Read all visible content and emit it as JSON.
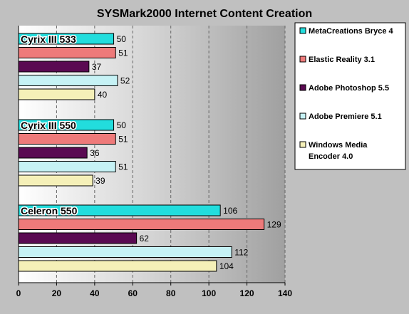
{
  "chart_data": {
    "type": "bar",
    "orientation": "horizontal",
    "title": "SYSMark2000 Internet Content Creation",
    "xlabel": "",
    "ylabel": "",
    "xlim": [
      0,
      140
    ],
    "x_ticks": [
      0,
      20,
      40,
      60,
      80,
      100,
      120,
      140
    ],
    "grid": "vertical dashed",
    "legend_position": "right",
    "categories": [
      "Cyrix III 533",
      "Cyrix III 550",
      "Celeron 550"
    ],
    "series": [
      {
        "name": "MetaCreations Bryce 4",
        "color": "#22dddd",
        "values": [
          50,
          50,
          106
        ]
      },
      {
        "name": "Elastic Reality 3.1",
        "color": "#ee7a7a",
        "values": [
          51,
          51,
          129
        ]
      },
      {
        "name": "Adobe Photoshop 5.5",
        "color": "#5a0a52",
        "values": [
          37,
          36,
          62
        ]
      },
      {
        "name": "Adobe Premiere 5.1",
        "color": "#c6f2f5",
        "values": [
          52,
          51,
          112
        ]
      },
      {
        "name": "Windows Media Encoder 4.0",
        "color": "#f5f0b8",
        "values": [
          40,
          39,
          104
        ]
      }
    ]
  }
}
